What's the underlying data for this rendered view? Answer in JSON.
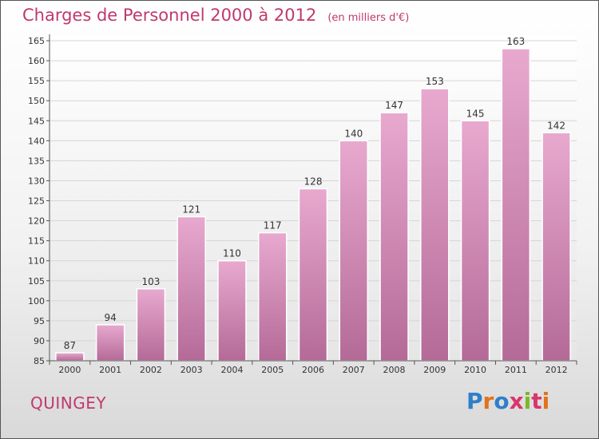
{
  "header": {
    "title": "Charges de Personnel 2000 à 2012",
    "unit": "(en milliers d'€)"
  },
  "footer": {
    "commune": "QUINGEY",
    "logo": "Proxiti"
  },
  "colors": {
    "title": "#c0396e",
    "bar_top": "#e8a9cf",
    "bar_bottom": "#b46a97"
  },
  "chart_data": {
    "type": "bar",
    "title": "Charges de Personnel 2000 à 2012",
    "subtitle": "(en milliers d'€)",
    "xlabel": "",
    "ylabel": "",
    "categories": [
      "2000",
      "2001",
      "2002",
      "2003",
      "2004",
      "2005",
      "2006",
      "2007",
      "2008",
      "2009",
      "2010",
      "2011",
      "2012"
    ],
    "values": [
      87,
      94,
      103,
      121,
      110,
      117,
      128,
      140,
      147,
      153,
      145,
      163,
      142
    ],
    "ylim": [
      85,
      165
    ],
    "yticks": [
      85,
      90,
      95,
      100,
      105,
      110,
      115,
      120,
      125,
      130,
      135,
      140,
      145,
      150,
      155,
      160,
      165
    ],
    "grid": true,
    "legend": "none"
  }
}
